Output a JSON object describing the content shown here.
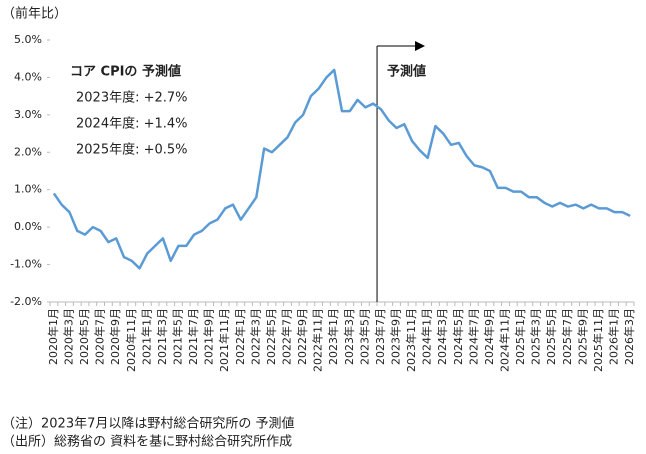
{
  "chart_data": {
    "type": "line",
    "y_label": "（前年比）",
    "categories": [
      "2020年1月",
      null,
      "2020年3月",
      null,
      "2020年5月",
      null,
      "2020年7月",
      null,
      "2020年9月",
      null,
      "2020年11月",
      null,
      "2021年1月",
      null,
      "2021年3月",
      null,
      "2021年5月",
      null,
      "2021年7月",
      null,
      "2021年9月",
      null,
      "2021年11月",
      null,
      "2022年1月",
      null,
      "2022年3月",
      null,
      "2022年5月",
      null,
      "2022年7月",
      null,
      "2022年9月",
      null,
      "2022年11月",
      null,
      "2023年1月",
      null,
      "2023年3月",
      null,
      "2023年5月",
      null,
      "2023年7月",
      null,
      "2023年9月",
      null,
      "2023年11月",
      null,
      "2024年1月",
      null,
      "2024年3月",
      null,
      "2024年5月",
      null,
      "2024年7月",
      null,
      "2024年9月",
      null,
      "2024年11月",
      null,
      "2025年1月",
      null,
      "2025年3月",
      null,
      "2025年5月",
      null,
      "2025年7月",
      null,
      "2025年9月",
      null,
      "2025年11月",
      null,
      "2026年1月",
      null,
      "2026年3月"
    ],
    "series": [
      {
        "name": "コア CPI",
        "color": "#5b9bd5",
        "values": [
          0.9,
          0.6,
          0.4,
          -0.1,
          -0.2,
          0.0,
          -0.1,
          -0.4,
          -0.3,
          -0.8,
          -0.9,
          -1.1,
          -0.7,
          -0.5,
          -0.3,
          -0.9,
          -0.5,
          -0.5,
          -0.2,
          -0.1,
          0.1,
          0.2,
          0.5,
          0.6,
          0.2,
          0.5,
          0.8,
          2.1,
          2.0,
          2.2,
          2.4,
          2.8,
          3.0,
          3.5,
          3.7,
          4.0,
          4.2,
          3.1,
          3.1,
          3.4,
          3.2,
          3.3,
          3.15,
          2.85,
          2.65,
          2.75,
          2.3,
          2.05,
          1.85,
          2.7,
          2.5,
          2.2,
          2.25,
          1.9,
          1.65,
          1.6,
          1.5,
          1.05,
          1.05,
          0.95,
          0.95,
          0.8,
          0.8,
          0.65,
          0.55,
          0.65,
          0.55,
          0.6,
          0.5,
          0.6,
          0.5,
          0.5,
          0.4,
          0.4,
          0.3
        ]
      }
    ],
    "ylim": [
      -2,
      5
    ],
    "yticks": [
      {
        "value": -2,
        "label": "-2.0%"
      },
      {
        "value": -1,
        "label": "-1.0%"
      },
      {
        "value": 0,
        "label": "0.0%"
      },
      {
        "value": 1,
        "label": "1.0%"
      },
      {
        "value": 2,
        "label": "2.0%"
      },
      {
        "value": 3,
        "label": "3.0%"
      },
      {
        "value": 4,
        "label": "4.0%"
      },
      {
        "value": 5,
        "label": "5.0%"
      }
    ],
    "annotation": {
      "title": "コア CPIの 予測値",
      "lines": [
        "2023年度: +2.7%",
        "2024年度: +1.4%",
        "2025年度: +0.5%"
      ]
    },
    "forecast_label": "予測値",
    "notes": [
      "（注）2023年7月以降は野村総合研究所の 予測値",
      "（出所）総務省の 資料を基に野村総合研究所作成"
    ]
  }
}
